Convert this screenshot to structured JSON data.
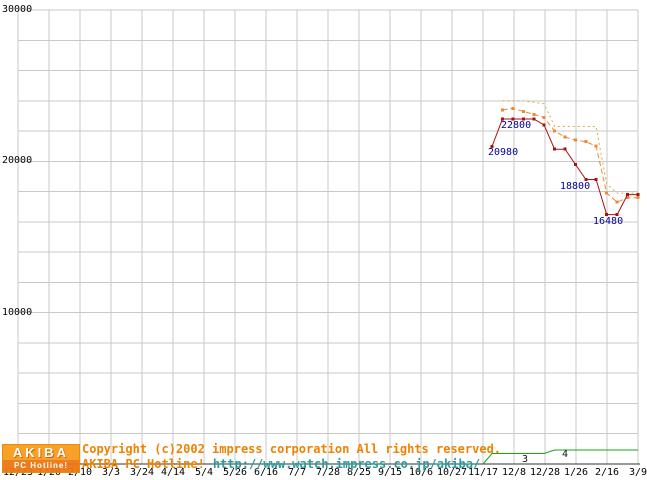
{
  "chart_data": {
    "type": "line",
    "title": "",
    "y_axis": {
      "range": [
        0,
        30000
      ],
      "gridline_step": 2000,
      "ticks": [
        {
          "label": "30000",
          "value": 30000
        },
        {
          "label": "20000",
          "value": 20000
        },
        {
          "label": "10000",
          "value": 10000
        }
      ]
    },
    "x_axis": {
      "labels": [
        "12/23",
        "1/20",
        "2/10",
        "3/3",
        "3/24",
        "4/14",
        "5/4",
        "5/26",
        "6/16",
        "7/7",
        "7/28",
        "8/25",
        "9/15",
        "10/6",
        "10/27",
        "11/17",
        "12/8",
        "12/28",
        "1/26",
        "2/16",
        "3/9"
      ]
    },
    "grid": true,
    "legend": "none",
    "series": [
      {
        "name": "highest-price",
        "color": "#ddaa44",
        "style": "dotted",
        "markers": false,
        "x_index": [
          15.29,
          15.63,
          15.96,
          16.3,
          16.64,
          16.97,
          17.31,
          17.65,
          17.98,
          18.32,
          18.65,
          18.99,
          19.33,
          19.66,
          20.0
        ],
        "values": [
          null,
          24000,
          24000,
          24000,
          23900,
          23800,
          22300,
          22300,
          22300,
          22300,
          22300,
          18500,
          17900,
          17900,
          17900
        ]
      },
      {
        "name": "average-price",
        "color": "#ee8833",
        "style": "dashed",
        "markers": true,
        "x_index": [
          15.29,
          15.63,
          15.96,
          16.3,
          16.64,
          16.97,
          17.31,
          17.65,
          17.98,
          18.32,
          18.65,
          18.99,
          19.33,
          19.66,
          20.0
        ],
        "values": [
          null,
          23400,
          23500,
          23300,
          23100,
          22900,
          22000,
          21600,
          21400,
          21300,
          21000,
          17900,
          17300,
          17600,
          17600
        ]
      },
      {
        "name": "lowest-price",
        "color": "#aa1111",
        "style": "solid",
        "markers": true,
        "x_index": [
          15.29,
          15.63,
          15.96,
          16.3,
          16.64,
          16.97,
          17.31,
          17.65,
          17.98,
          18.32,
          18.65,
          18.99,
          19.33,
          19.66,
          20.0
        ],
        "values": [
          20980,
          22800,
          22800,
          22800,
          22800,
          22400,
          20800,
          20800,
          19800,
          18800,
          18800,
          16480,
          16480,
          17800,
          17800
        ]
      }
    ],
    "shop_count_series": {
      "name": "shop-count",
      "color": "#11aa11",
      "x_index": [
        15.0,
        15.29,
        15.63,
        15.96,
        16.3,
        16.64,
        16.97,
        17.31,
        17.65,
        17.98,
        18.32,
        18.65,
        18.99,
        19.33,
        19.66,
        20.0
      ],
      "counts": [
        0,
        3,
        3,
        3,
        3,
        3,
        3,
        4,
        4,
        4,
        4,
        4,
        4,
        4,
        4,
        4
      ]
    },
    "annotations": [
      {
        "name": "price-label",
        "text": "22800",
        "x": 501,
        "y": 121,
        "color": "#000099"
      },
      {
        "name": "price-label",
        "text": "20980",
        "x": 488,
        "y": 148,
        "color": "#000099"
      },
      {
        "name": "price-label",
        "text": "18800",
        "x": 560,
        "y": 182,
        "color": "#000099"
      },
      {
        "name": "price-label",
        "text": "16480",
        "x": 593,
        "y": 217,
        "color": "#000099"
      },
      {
        "name": "shop-count-label",
        "text": "3",
        "x": 522,
        "y": 455,
        "color": "#111111"
      },
      {
        "name": "shop-count-label",
        "text": "4",
        "x": 562,
        "y": 450,
        "color": "#111111"
      }
    ]
  },
  "footer": {
    "copyright_line1": "Copyright (c)2002 impress corporation All rights reserved.",
    "brand": "AKIBA PC Hotline!",
    "url": "http://www.watch.impress.co.jp/akiba/",
    "logo_top": "AKIBA",
    "logo_bottom": "PC Hotline!"
  },
  "colors": {
    "grid": "#c9c9c9",
    "axis": "#333333",
    "copyright_orange": "#ef8200",
    "url_teal": "#2e9b9b"
  }
}
